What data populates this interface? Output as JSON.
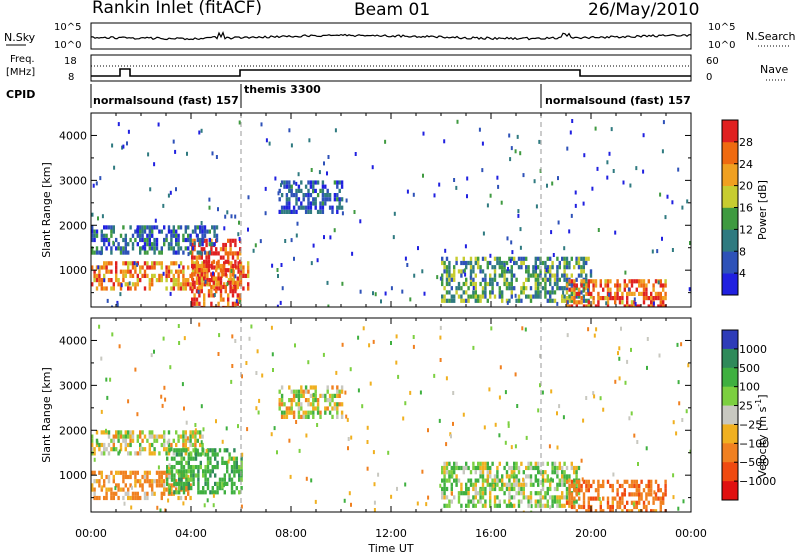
{
  "header": {
    "station": "Rankin Inlet (fitACF)",
    "beam": "Beam 01",
    "date": "26/May/2010"
  },
  "noise_panel": {
    "left_label": "N.Sky",
    "left_ticks": [
      "10^5",
      "10^0"
    ],
    "right_label": "N.Search",
    "right_ticks": [
      "10^5",
      "10^0"
    ]
  },
  "freq_panel": {
    "left_label_line1": "Freq.",
    "left_label_line2": "[MHz]",
    "left_ticks": [
      "18",
      "8"
    ],
    "right_label": "Nave",
    "right_ticks": [
      "60",
      "0"
    ]
  },
  "cpid_panel": {
    "label": "CPID",
    "segments": [
      {
        "name": "normalsound (fast) 157",
        "start_h": 0,
        "end_h": 6
      },
      {
        "name": "themis 3300",
        "start_h": 6,
        "end_h": 18
      },
      {
        "name": "normalsound (fast) 157",
        "start_h": 18,
        "end_h": 24
      }
    ]
  },
  "chart_data": [
    {
      "type": "heatmap",
      "panel": "power",
      "ylabel": "Slant Range [km]",
      "yticks": [
        "1000",
        "2000",
        "3000",
        "4000"
      ],
      "ylim": [
        180,
        4500
      ],
      "xlim": [
        0,
        24
      ],
      "colorbar": {
        "label": "Power [dB]",
        "ticks": [
          "4",
          "8",
          "12",
          "16",
          "20",
          "24",
          "28"
        ],
        "range": [
          0,
          30
        ],
        "colors": [
          "#2020e0",
          "#2e52b8",
          "#2f7a80",
          "#3f9a40",
          "#c7cc30",
          "#f0a020",
          "#ef6a10",
          "#e02020"
        ]
      },
      "features": [
        {
          "t0": 0.0,
          "t1": 6.3,
          "r0": 600,
          "r1": 1200,
          "level": 24,
          "label": "mixed near-range echoes"
        },
        {
          "t0": 4.0,
          "t1": 6.0,
          "r0": 200,
          "r1": 1700,
          "level": 28,
          "label": "strong near-range echoes"
        },
        {
          "t0": 0.0,
          "t1": 5.0,
          "r0": 1400,
          "r1": 2000,
          "level": 8,
          "label": "upper band"
        },
        {
          "t0": 7.5,
          "t1": 10.0,
          "r0": 2300,
          "r1": 3000,
          "level": 6,
          "label": "far-range arc"
        },
        {
          "t0": 14.0,
          "t1": 20.0,
          "r0": 300,
          "r1": 1300,
          "level": 12,
          "label": "evening echoes"
        },
        {
          "t0": 19.0,
          "t1": 23.0,
          "r0": 200,
          "r1": 800,
          "level": 26,
          "label": "strong evening echoes"
        }
      ]
    },
    {
      "type": "heatmap",
      "panel": "velocity",
      "ylabel": "Slant Range [km]",
      "yticks": [
        "1000",
        "2000",
        "3000",
        "4000"
      ],
      "ylim": [
        180,
        4500
      ],
      "xlim": [
        0,
        24
      ],
      "xlabel": "Time UT",
      "xticks": [
        "00:00",
        "04:00",
        "08:00",
        "12:00",
        "16:00",
        "20:00",
        "00:00"
      ],
      "colorbar": {
        "label": "Velocity [m s",
        "label_sup": "-1",
        "label_end": "]",
        "ticks": [
          "1000",
          "500",
          "100",
          "25",
          "−25",
          "−100",
          "−500",
          "−1000"
        ],
        "colors": [
          "#2e3cb8",
          "#2f8a5a",
          "#3fb040",
          "#7cd040",
          "#c8c8c0",
          "#f0b020",
          "#f08020",
          "#f04a10",
          "#e01010"
        ]
      },
      "features": [
        {
          "t0": 0.0,
          "t1": 4.0,
          "r0": 500,
          "r1": 1100,
          "level": -200,
          "label": "orange near-range flow"
        },
        {
          "t0": 0.0,
          "t1": 4.5,
          "r0": 1500,
          "r1": 2000,
          "level": 0,
          "label": "grey upper band"
        },
        {
          "t0": 3.0,
          "t1": 6.0,
          "r0": 600,
          "r1": 1600,
          "level": 300,
          "label": "green/blue flow"
        },
        {
          "t0": 7.5,
          "t1": 10.0,
          "r0": 2300,
          "r1": 3000,
          "level": 0,
          "label": "grey far-range arc"
        },
        {
          "t0": 14.0,
          "t1": 19.5,
          "r0": 300,
          "r1": 1300,
          "level": 80,
          "label": "evening mixed flow"
        },
        {
          "t0": 19.0,
          "t1": 23.0,
          "r0": 200,
          "r1": 900,
          "level": -400,
          "label": "evening negative flow"
        }
      ]
    }
  ]
}
